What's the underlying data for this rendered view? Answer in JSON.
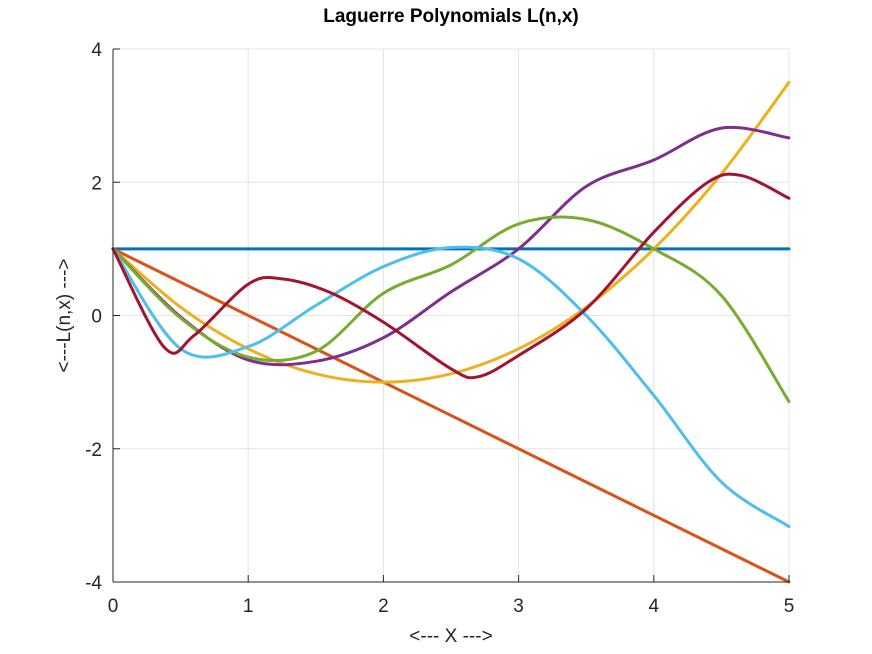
{
  "chart_data": {
    "type": "line",
    "title": "Laguerre Polynomials L(n,x)",
    "xlabel": "<--- X --->",
    "ylabel": "<---L(n,x) --->",
    "xlim": [
      0,
      5
    ],
    "ylim": [
      -4,
      4
    ],
    "xticks": [
      0,
      1,
      2,
      3,
      4,
      5
    ],
    "yticks": [
      -4,
      -2,
      0,
      2,
      4
    ],
    "grid": true,
    "legend": "none",
    "series": [
      {
        "n": 0,
        "color": "#0072BD",
        "x": [
          0,
          5
        ],
        "y": [
          1,
          1
        ]
      },
      {
        "n": 1,
        "color": "#D95319",
        "x": [
          0,
          5
        ],
        "y": [
          1,
          -4
        ]
      },
      {
        "n": 2,
        "color": "#EDB120",
        "x": [
          0,
          0.5,
          1,
          1.5,
          2,
          2.5,
          3,
          3.5,
          4,
          4.5,
          5
        ],
        "y": [
          1,
          0.125,
          -0.5,
          -0.875,
          -1,
          -0.875,
          -0.5,
          0.125,
          1,
          2.125,
          3.5
        ]
      },
      {
        "n": 3,
        "color": "#7E2F8E",
        "x": [
          0,
          0.5,
          1,
          1.5,
          2,
          2.5,
          3,
          3.5,
          4,
          4.5,
          5
        ],
        "y": [
          1,
          -0.0208,
          -0.6667,
          -0.6875,
          -0.3333,
          0.3542,
          1,
          1.9375,
          2.3333,
          2.8125,
          2.6667
        ]
      },
      {
        "n": 4,
        "color": "#77AC30",
        "x": [
          0,
          0.5,
          1,
          1.5,
          2,
          2.5,
          3,
          3.5,
          4,
          4.5,
          5
        ],
        "y": [
          1,
          -0.0391,
          -0.625,
          -0.5391,
          0.3333,
          0.7598,
          1.375,
          1.4414,
          1.0,
          0.3,
          -1.2917
        ]
      },
      {
        "n": 5,
        "color": "#4DBEEE",
        "x": [
          0,
          0.5,
          1,
          1.5,
          2,
          2.5,
          3,
          3.5,
          4,
          4.5,
          5
        ],
        "y": [
          1,
          -0.5,
          -0.4667,
          0.15,
          0.7333,
          1.02,
          0.85,
          0.0,
          -1.2,
          -2.5,
          -3.1667
        ]
      },
      {
        "n": 6,
        "color": "#A2142F",
        "x": [
          0,
          0.38,
          0.6,
          1,
          1.25,
          1.6,
          2,
          2.5,
          2.7,
          3,
          3.5,
          4,
          4.4,
          4.65,
          5
        ],
        "y": [
          1,
          -0.48,
          -0.3,
          0.47,
          0.55,
          0.35,
          -0.1,
          -0.8,
          -0.92,
          -0.6,
          0.1,
          1.25,
          2.0,
          2.1,
          1.76
        ]
      }
    ]
  }
}
